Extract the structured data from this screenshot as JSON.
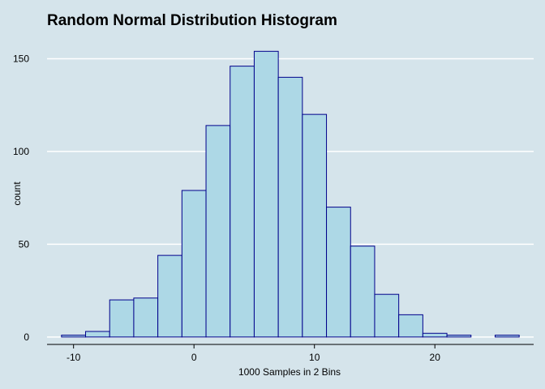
{
  "chart_data": {
    "type": "bar",
    "title": "Random Normal Distribution Histogram",
    "xlabel": "1000 Samples in 2 Bins",
    "ylabel": "count",
    "bin_width": 2,
    "bins": [
      {
        "center": -10,
        "count": 1
      },
      {
        "center": -8,
        "count": 3
      },
      {
        "center": -6,
        "count": 20
      },
      {
        "center": -4,
        "count": 21
      },
      {
        "center": -2,
        "count": 44
      },
      {
        "center": 0,
        "count": 79
      },
      {
        "center": 2,
        "count": 114
      },
      {
        "center": 4,
        "count": 146
      },
      {
        "center": 6,
        "count": 154
      },
      {
        "center": 8,
        "count": 140
      },
      {
        "center": 10,
        "count": 120
      },
      {
        "center": 12,
        "count": 70
      },
      {
        "center": 14,
        "count": 49
      },
      {
        "center": 16,
        "count": 23
      },
      {
        "center": 18,
        "count": 12
      },
      {
        "center": 20,
        "count": 2
      },
      {
        "center": 22,
        "count": 1
      },
      {
        "center": 24,
        "count": 0
      },
      {
        "center": 26,
        "count": 1
      }
    ],
    "x_ticks": [
      -10,
      0,
      10,
      20
    ],
    "y_ticks": [
      0,
      50,
      100,
      150
    ],
    "xlim": [
      -12.2,
      28.2
    ],
    "ylim": [
      -4,
      162
    ],
    "grid": "horizontal",
    "colors": {
      "background": "#d5e4eb",
      "bar_fill": "#add8e6",
      "bar_stroke": "#00008b",
      "gridline": "#ffffff",
      "axis_line": "#000000"
    }
  }
}
